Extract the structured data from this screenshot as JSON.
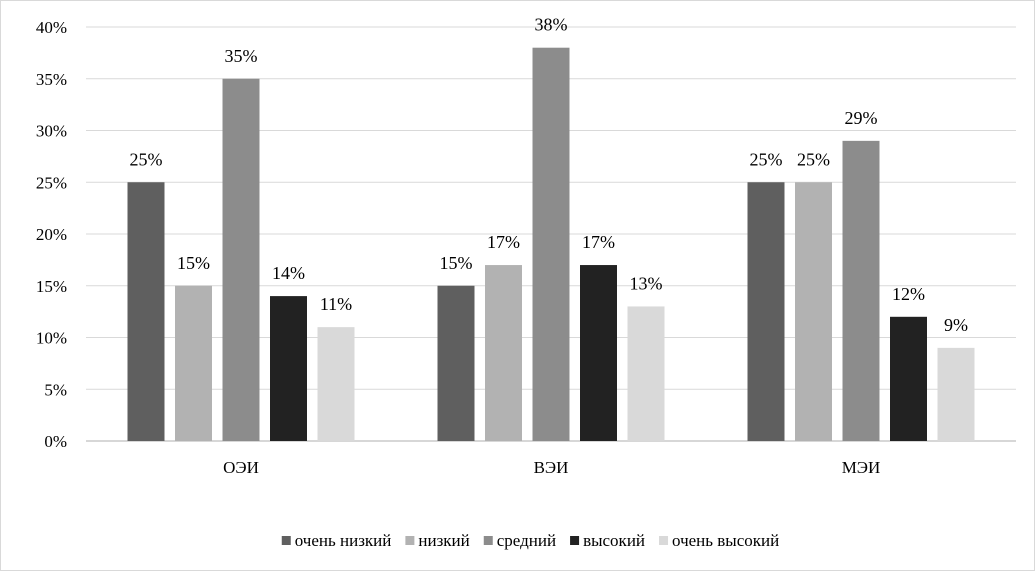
{
  "chart_data": {
    "type": "bar",
    "categories": [
      "ОЭИ",
      "ВЭИ",
      "МЭИ"
    ],
    "series": [
      {
        "name": "очень низкий",
        "values": [
          25,
          15,
          25
        ],
        "color": "#5f5f5f"
      },
      {
        "name": "низкий",
        "values": [
          15,
          17,
          25
        ],
        "color": "#b2b2b2"
      },
      {
        "name": "средний",
        "values": [
          35,
          38,
          29
        ],
        "color": "#8c8c8c"
      },
      {
        "name": "высокий",
        "values": [
          14,
          17,
          12
        ],
        "color": "#222222"
      },
      {
        "name": "очень высокий",
        "values": [
          11,
          13,
          9
        ],
        "color": "#d9d9d9"
      }
    ],
    "y_ticks": [
      "0%",
      "5%",
      "10%",
      "15%",
      "20%",
      "25%",
      "30%",
      "35%",
      "40%"
    ],
    "ylim": [
      0,
      40
    ],
    "value_suffix": "%",
    "grid": true,
    "gridline_color": "#d9d9d9",
    "legend_position": "bottom",
    "title": "",
    "xlabel": "",
    "ylabel": ""
  }
}
